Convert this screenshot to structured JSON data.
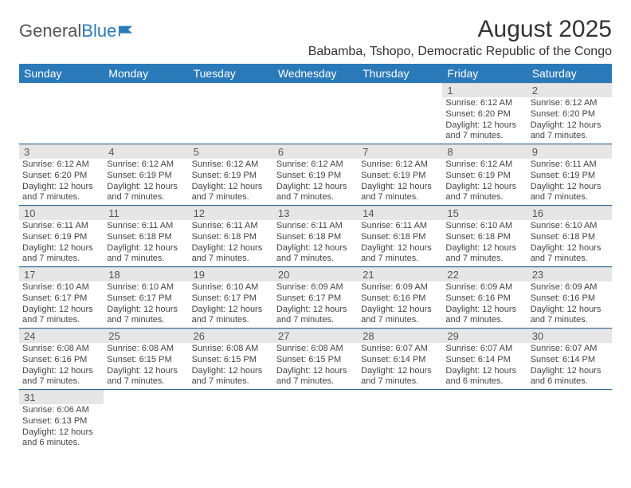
{
  "logo": {
    "general": "General",
    "blue": "Blue"
  },
  "title": "August 2025",
  "location": "Babamba, Tshopo, Democratic Republic of the Congo",
  "colors": {
    "header_bg": "#2a7ab9",
    "header_text": "#ffffff",
    "daynum_bg": "#e6e6e6",
    "border": "#2a6aa0",
    "body_text": "#444444",
    "logo_blue": "#2a7ab9"
  },
  "day_headers": [
    "Sunday",
    "Monday",
    "Tuesday",
    "Wednesday",
    "Thursday",
    "Friday",
    "Saturday"
  ],
  "weeks": [
    [
      null,
      null,
      null,
      null,
      null,
      {
        "n": "1",
        "sunrise": "Sunrise: 6:12 AM",
        "sunset": "Sunset: 6:20 PM",
        "daylight1": "Daylight: 12 hours",
        "daylight2": "and 7 minutes."
      },
      {
        "n": "2",
        "sunrise": "Sunrise: 6:12 AM",
        "sunset": "Sunset: 6:20 PM",
        "daylight1": "Daylight: 12 hours",
        "daylight2": "and 7 minutes."
      }
    ],
    [
      {
        "n": "3",
        "sunrise": "Sunrise: 6:12 AM",
        "sunset": "Sunset: 6:20 PM",
        "daylight1": "Daylight: 12 hours",
        "daylight2": "and 7 minutes."
      },
      {
        "n": "4",
        "sunrise": "Sunrise: 6:12 AM",
        "sunset": "Sunset: 6:19 PM",
        "daylight1": "Daylight: 12 hours",
        "daylight2": "and 7 minutes."
      },
      {
        "n": "5",
        "sunrise": "Sunrise: 6:12 AM",
        "sunset": "Sunset: 6:19 PM",
        "daylight1": "Daylight: 12 hours",
        "daylight2": "and 7 minutes."
      },
      {
        "n": "6",
        "sunrise": "Sunrise: 6:12 AM",
        "sunset": "Sunset: 6:19 PM",
        "daylight1": "Daylight: 12 hours",
        "daylight2": "and 7 minutes."
      },
      {
        "n": "7",
        "sunrise": "Sunrise: 6:12 AM",
        "sunset": "Sunset: 6:19 PM",
        "daylight1": "Daylight: 12 hours",
        "daylight2": "and 7 minutes."
      },
      {
        "n": "8",
        "sunrise": "Sunrise: 6:12 AM",
        "sunset": "Sunset: 6:19 PM",
        "daylight1": "Daylight: 12 hours",
        "daylight2": "and 7 minutes."
      },
      {
        "n": "9",
        "sunrise": "Sunrise: 6:11 AM",
        "sunset": "Sunset: 6:19 PM",
        "daylight1": "Daylight: 12 hours",
        "daylight2": "and 7 minutes."
      }
    ],
    [
      {
        "n": "10",
        "sunrise": "Sunrise: 6:11 AM",
        "sunset": "Sunset: 6:19 PM",
        "daylight1": "Daylight: 12 hours",
        "daylight2": "and 7 minutes."
      },
      {
        "n": "11",
        "sunrise": "Sunrise: 6:11 AM",
        "sunset": "Sunset: 6:18 PM",
        "daylight1": "Daylight: 12 hours",
        "daylight2": "and 7 minutes."
      },
      {
        "n": "12",
        "sunrise": "Sunrise: 6:11 AM",
        "sunset": "Sunset: 6:18 PM",
        "daylight1": "Daylight: 12 hours",
        "daylight2": "and 7 minutes."
      },
      {
        "n": "13",
        "sunrise": "Sunrise: 6:11 AM",
        "sunset": "Sunset: 6:18 PM",
        "daylight1": "Daylight: 12 hours",
        "daylight2": "and 7 minutes."
      },
      {
        "n": "14",
        "sunrise": "Sunrise: 6:11 AM",
        "sunset": "Sunset: 6:18 PM",
        "daylight1": "Daylight: 12 hours",
        "daylight2": "and 7 minutes."
      },
      {
        "n": "15",
        "sunrise": "Sunrise: 6:10 AM",
        "sunset": "Sunset: 6:18 PM",
        "daylight1": "Daylight: 12 hours",
        "daylight2": "and 7 minutes."
      },
      {
        "n": "16",
        "sunrise": "Sunrise: 6:10 AM",
        "sunset": "Sunset: 6:18 PM",
        "daylight1": "Daylight: 12 hours",
        "daylight2": "and 7 minutes."
      }
    ],
    [
      {
        "n": "17",
        "sunrise": "Sunrise: 6:10 AM",
        "sunset": "Sunset: 6:17 PM",
        "daylight1": "Daylight: 12 hours",
        "daylight2": "and 7 minutes."
      },
      {
        "n": "18",
        "sunrise": "Sunrise: 6:10 AM",
        "sunset": "Sunset: 6:17 PM",
        "daylight1": "Daylight: 12 hours",
        "daylight2": "and 7 minutes."
      },
      {
        "n": "19",
        "sunrise": "Sunrise: 6:10 AM",
        "sunset": "Sunset: 6:17 PM",
        "daylight1": "Daylight: 12 hours",
        "daylight2": "and 7 minutes."
      },
      {
        "n": "20",
        "sunrise": "Sunrise: 6:09 AM",
        "sunset": "Sunset: 6:17 PM",
        "daylight1": "Daylight: 12 hours",
        "daylight2": "and 7 minutes."
      },
      {
        "n": "21",
        "sunrise": "Sunrise: 6:09 AM",
        "sunset": "Sunset: 6:16 PM",
        "daylight1": "Daylight: 12 hours",
        "daylight2": "and 7 minutes."
      },
      {
        "n": "22",
        "sunrise": "Sunrise: 6:09 AM",
        "sunset": "Sunset: 6:16 PM",
        "daylight1": "Daylight: 12 hours",
        "daylight2": "and 7 minutes."
      },
      {
        "n": "23",
        "sunrise": "Sunrise: 6:09 AM",
        "sunset": "Sunset: 6:16 PM",
        "daylight1": "Daylight: 12 hours",
        "daylight2": "and 7 minutes."
      }
    ],
    [
      {
        "n": "24",
        "sunrise": "Sunrise: 6:08 AM",
        "sunset": "Sunset: 6:16 PM",
        "daylight1": "Daylight: 12 hours",
        "daylight2": "and 7 minutes."
      },
      {
        "n": "25",
        "sunrise": "Sunrise: 6:08 AM",
        "sunset": "Sunset: 6:15 PM",
        "daylight1": "Daylight: 12 hours",
        "daylight2": "and 7 minutes."
      },
      {
        "n": "26",
        "sunrise": "Sunrise: 6:08 AM",
        "sunset": "Sunset: 6:15 PM",
        "daylight1": "Daylight: 12 hours",
        "daylight2": "and 7 minutes."
      },
      {
        "n": "27",
        "sunrise": "Sunrise: 6:08 AM",
        "sunset": "Sunset: 6:15 PM",
        "daylight1": "Daylight: 12 hours",
        "daylight2": "and 7 minutes."
      },
      {
        "n": "28",
        "sunrise": "Sunrise: 6:07 AM",
        "sunset": "Sunset: 6:14 PM",
        "daylight1": "Daylight: 12 hours",
        "daylight2": "and 7 minutes."
      },
      {
        "n": "29",
        "sunrise": "Sunrise: 6:07 AM",
        "sunset": "Sunset: 6:14 PM",
        "daylight1": "Daylight: 12 hours",
        "daylight2": "and 6 minutes."
      },
      {
        "n": "30",
        "sunrise": "Sunrise: 6:07 AM",
        "sunset": "Sunset: 6:14 PM",
        "daylight1": "Daylight: 12 hours",
        "daylight2": "and 6 minutes."
      }
    ],
    [
      {
        "n": "31",
        "sunrise": "Sunrise: 6:06 AM",
        "sunset": "Sunset: 6:13 PM",
        "daylight1": "Daylight: 12 hours",
        "daylight2": "and 6 minutes."
      },
      null,
      null,
      null,
      null,
      null,
      null
    ]
  ]
}
